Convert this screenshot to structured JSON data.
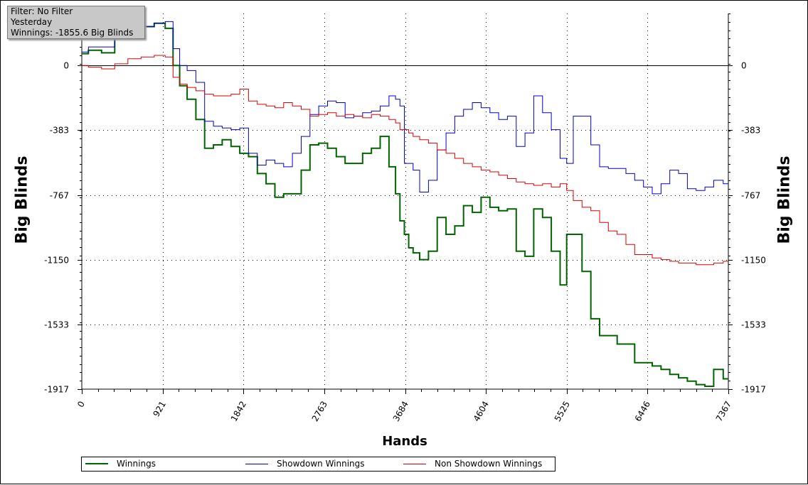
{
  "filter_box": {
    "line1": "Filter: No Filter",
    "line2": "Yesterday",
    "line3": "Winnings: -1855.6 Big Blinds"
  },
  "chart_data": {
    "type": "line",
    "xlabel": "Hands",
    "ylabel": "Big Blinds",
    "xlim": [
      0,
      7367
    ],
    "ylim": [
      -1917,
      308
    ],
    "x_ticks": [
      "0",
      "921",
      "1842",
      "2763",
      "3684",
      "4604",
      "5525",
      "6446",
      "7367"
    ],
    "y_ticks": [
      "0",
      "-383",
      "-767",
      "-1150",
      "-1533",
      "-1917"
    ],
    "grid": true,
    "legend_placement": "bottom",
    "series": [
      {
        "name": "Winnings",
        "color": "#006400",
        "x": [
          0,
          150,
          300,
          450,
          600,
          750,
          900,
          1000,
          1080,
          1150,
          1250,
          1350,
          1450,
          1550,
          1650,
          1750,
          1850,
          1950,
          2050,
          2150,
          2250,
          2350,
          2450,
          2550,
          2650,
          2750,
          2850,
          2950,
          3050,
          3150,
          3250,
          3350,
          3450,
          3550,
          3600,
          3650,
          3700,
          3750,
          3800,
          3900,
          4000,
          4100,
          4200,
          4300,
          4400,
          4500,
          4600,
          4700,
          4800,
          4900,
          5000,
          5100,
          5200,
          5300,
          5400,
          5500,
          5550,
          5650,
          5750,
          5850,
          5950,
          6050,
          6150,
          6250,
          6350,
          6450,
          6550,
          6650,
          6750,
          6850,
          6950,
          7050,
          7150,
          7250,
          7367
        ],
        "y": [
          70,
          90,
          75,
          180,
          160,
          230,
          250,
          220,
          0,
          -120,
          -200,
          -320,
          -490,
          -470,
          -440,
          -480,
          -520,
          -540,
          -640,
          -700,
          -780,
          -760,
          -760,
          -620,
          -470,
          -460,
          -490,
          -540,
          -580,
          -580,
          -520,
          -490,
          -420,
          -600,
          -760,
          -920,
          -1000,
          -1080,
          -1110,
          -1150,
          -1100,
          -900,
          -1000,
          -950,
          -830,
          -870,
          -780,
          -840,
          -860,
          -850,
          -1100,
          -1130,
          -850,
          -900,
          -1100,
          -1300,
          -1000,
          -1000,
          -1220,
          -1500,
          -1600,
          -1600,
          -1650,
          -1650,
          -1760,
          -1760,
          -1780,
          -1800,
          -1830,
          -1850,
          -1870,
          -1890,
          -1900,
          -1800,
          -1856
        ]
      },
      {
        "name": "Showdown Winnings",
        "color": "#0000cc",
        "x": [
          0,
          150,
          300,
          450,
          600,
          750,
          900,
          1000,
          1080,
          1150,
          1250,
          1350,
          1450,
          1550,
          1650,
          1750,
          1850,
          1950,
          2050,
          2150,
          2250,
          2350,
          2450,
          2550,
          2650,
          2750,
          2850,
          2950,
          3050,
          3150,
          3250,
          3350,
          3450,
          3550,
          3600,
          3650,
          3700,
          3750,
          3800,
          3900,
          4000,
          4100,
          4200,
          4300,
          4400,
          4500,
          4600,
          4700,
          4800,
          4900,
          5000,
          5100,
          5200,
          5300,
          5400,
          5500,
          5550,
          5650,
          5750,
          5850,
          5950,
          6050,
          6150,
          6250,
          6350,
          6450,
          6550,
          6650,
          6750,
          6850,
          6950,
          7050,
          7150,
          7250,
          7367
        ],
        "y": [
          80,
          110,
          110,
          200,
          210,
          230,
          250,
          260,
          100,
          0,
          -30,
          -100,
          -330,
          -360,
          -370,
          -380,
          -370,
          -520,
          -590,
          -560,
          -580,
          -600,
          -520,
          -420,
          -290,
          -240,
          -210,
          -220,
          -310,
          -300,
          -280,
          -270,
          -240,
          -180,
          -200,
          -240,
          -580,
          -580,
          -620,
          -750,
          -680,
          -500,
          -400,
          -300,
          -260,
          -220,
          -250,
          -280,
          -320,
          -300,
          -480,
          -400,
          -180,
          -280,
          -380,
          -550,
          -580,
          -300,
          -300,
          -470,
          -600,
          -610,
          -610,
          -640,
          -680,
          -720,
          -760,
          -700,
          -620,
          -640,
          -730,
          -740,
          -720,
          -680,
          -700
        ]
      },
      {
        "name": "Non Showdown Winnings",
        "color": "#dd0000",
        "x": [
          0,
          150,
          300,
          450,
          600,
          750,
          900,
          1000,
          1080,
          1150,
          1250,
          1350,
          1450,
          1550,
          1650,
          1750,
          1850,
          1950,
          2050,
          2150,
          2250,
          2350,
          2450,
          2550,
          2650,
          2750,
          2850,
          2950,
          3050,
          3150,
          3250,
          3350,
          3450,
          3550,
          3600,
          3650,
          3700,
          3750,
          3800,
          3900,
          4000,
          4100,
          4200,
          4300,
          4400,
          4500,
          4600,
          4700,
          4800,
          4900,
          5000,
          5100,
          5200,
          5300,
          5400,
          5500,
          5550,
          5650,
          5750,
          5850,
          5950,
          6050,
          6150,
          6250,
          6350,
          6450,
          6550,
          6650,
          6750,
          6850,
          6950,
          7050,
          7150,
          7250,
          7367
        ],
        "y": [
          0,
          -10,
          -20,
          10,
          40,
          50,
          60,
          50,
          -70,
          -110,
          -130,
          -150,
          -170,
          -180,
          -180,
          -170,
          -140,
          -210,
          -230,
          -240,
          -250,
          -220,
          -240,
          -260,
          -300,
          -290,
          -280,
          -300,
          -290,
          -300,
          -310,
          -290,
          -300,
          -320,
          -340,
          -380,
          -380,
          -400,
          -420,
          -440,
          -460,
          -500,
          -520,
          -550,
          -580,
          -600,
          -620,
          -630,
          -650,
          -670,
          -690,
          -700,
          -710,
          -700,
          -720,
          -700,
          -740,
          -800,
          -840,
          -860,
          -930,
          -980,
          -1000,
          -1060,
          -1120,
          -1120,
          -1140,
          -1150,
          -1160,
          -1170,
          -1170,
          -1180,
          -1180,
          -1170,
          -1160
        ]
      }
    ]
  }
}
